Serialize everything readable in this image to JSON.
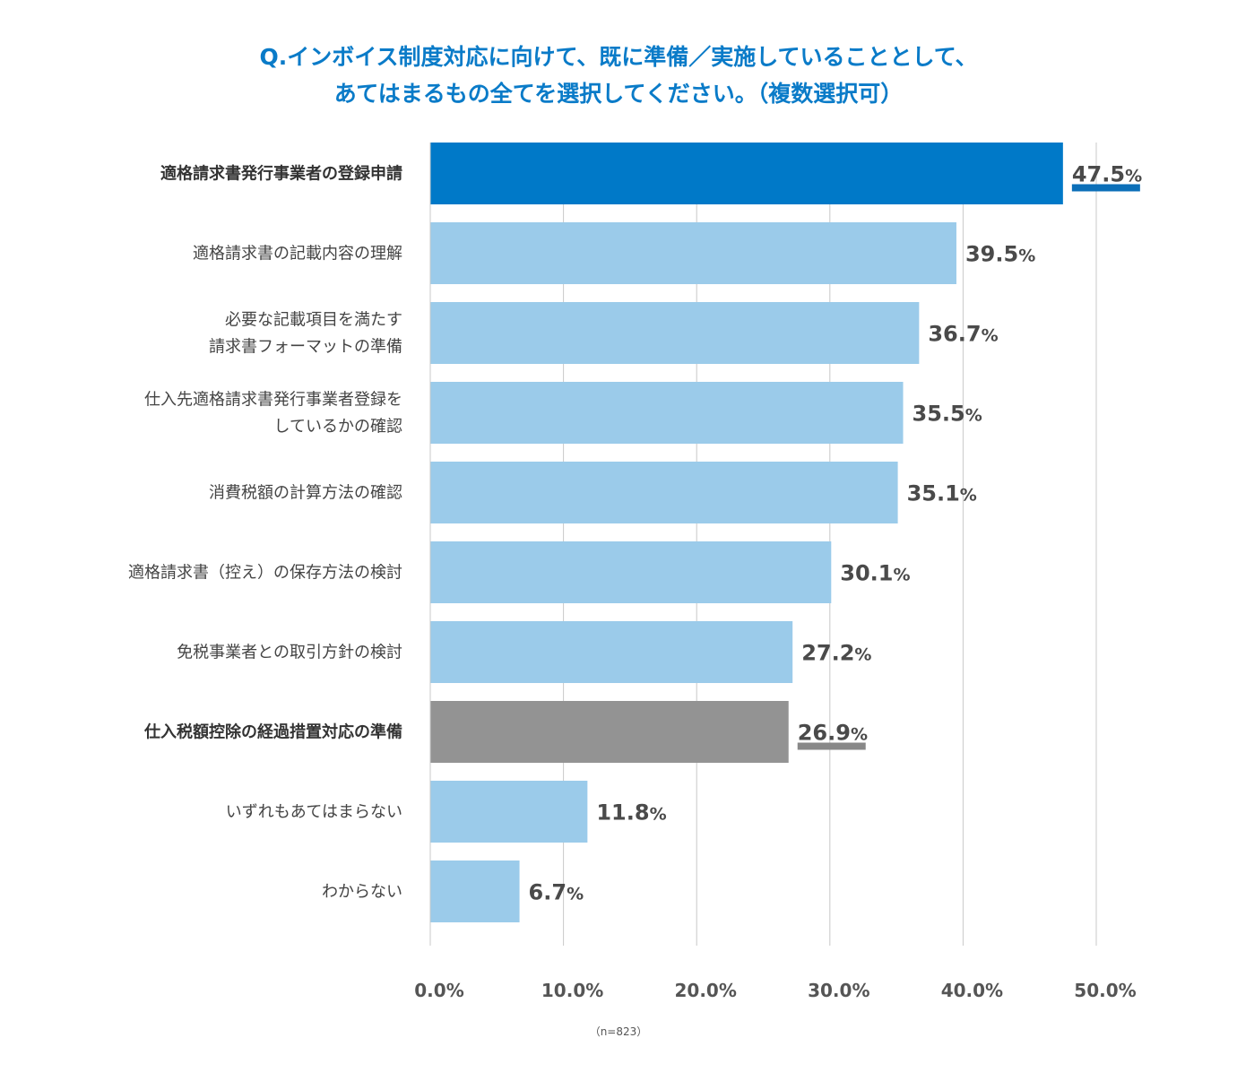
{
  "chart_data": {
    "type": "bar",
    "orientation": "horizontal",
    "title_lines": [
      "Q.インボイス制度対応に向けて、既に準備／実施していることとして、",
      "あてはまるもの全てを選択してください。（複数選択可）"
    ],
    "categories": [
      [
        "適格請求書発行事業者の登録申請"
      ],
      [
        "適格請求書の記載内容の理解"
      ],
      [
        "必要な記載項目を満たす",
        "請求書フォーマットの準備"
      ],
      [
        "仕入先適格請求書発行事業者登録を",
        "しているかの確認"
      ],
      [
        "消費税額の計算方法の確認"
      ],
      [
        "適格請求書（控え）の保存方法の検討"
      ],
      [
        "免税事業者との取引方針の検討"
      ],
      [
        "仕入税額控除の経過措置対応の準備"
      ],
      [
        "いずれもあてはまらない"
      ],
      [
        "わからない"
      ]
    ],
    "values": [
      47.5,
      39.5,
      36.7,
      35.5,
      35.1,
      30.1,
      27.2,
      26.9,
      11.8,
      6.7
    ],
    "value_labels": [
      "47.5",
      "39.5",
      "36.7",
      "35.5",
      "35.1",
      "30.1",
      "27.2",
      "26.9",
      "11.8",
      "6.7"
    ],
    "value_unit": "%",
    "highlight": [
      0,
      7
    ],
    "bar_colors": [
      "#0079c8",
      "#9bcbea",
      "#9bcbea",
      "#9bcbea",
      "#9bcbea",
      "#9bcbea",
      "#9bcbea",
      "#939393",
      "#9bcbea",
      "#9bcbea"
    ],
    "underline_colors": [
      "#0b6fb8",
      null,
      null,
      null,
      null,
      null,
      null,
      "#888888",
      null,
      null
    ],
    "x_ticks": [
      "0.0%",
      "10.0%",
      "20.0%",
      "30.0%",
      "40.0%",
      "50.0%"
    ],
    "xlim": [
      0,
      50
    ],
    "grid": true,
    "gridline_color": "#c8c8c8",
    "note": "（n=823）"
  }
}
